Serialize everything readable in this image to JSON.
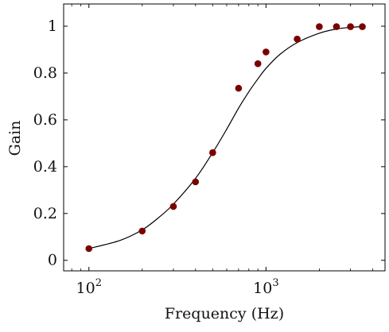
{
  "chart_data": {
    "type": "scatter",
    "xscale": "log",
    "xlabel": "Frequency (Hz)",
    "ylabel": "Gain",
    "xlim": [
      72,
      4700
    ],
    "ylim": [
      -0.045,
      1.095
    ],
    "x_ticks": [
      {
        "value": 100,
        "base": "10",
        "exp": "2"
      },
      {
        "value": 1000,
        "base": "10",
        "exp": "3"
      }
    ],
    "y_ticks": [
      {
        "value": 0,
        "label": "0"
      },
      {
        "value": 0.2,
        "label": "0.2"
      },
      {
        "value": 0.4,
        "label": "0.4"
      },
      {
        "value": 0.6,
        "label": "0.6"
      },
      {
        "value": 0.8,
        "label": "0.8"
      },
      {
        "value": 1,
        "label": "1"
      }
    ],
    "grid": false,
    "legend": "none",
    "series": [
      {
        "kind": "points",
        "color": "#7a0000",
        "x": [
          100,
          200,
          300,
          400,
          500,
          700,
          900,
          1000,
          1500,
          2000,
          2500,
          3000,
          3500
        ],
        "y": [
          0.05,
          0.125,
          0.23,
          0.335,
          0.46,
          0.735,
          0.84,
          0.89,
          0.945,
          0.998,
          0.998,
          0.998,
          0.998
        ]
      },
      {
        "kind": "fit-curve",
        "color": "#000000",
        "x": [
          100,
          150,
          200,
          250,
          300,
          400,
          500,
          600,
          700,
          800,
          900,
          1000,
          1200,
          1500,
          2000,
          2500,
          3000,
          3500
        ],
        "y": [
          0.05,
          0.085,
          0.13,
          0.185,
          0.24,
          0.35,
          0.46,
          0.56,
          0.65,
          0.72,
          0.775,
          0.82,
          0.88,
          0.93,
          0.97,
          0.988,
          0.995,
          0.998
        ]
      }
    ]
  }
}
